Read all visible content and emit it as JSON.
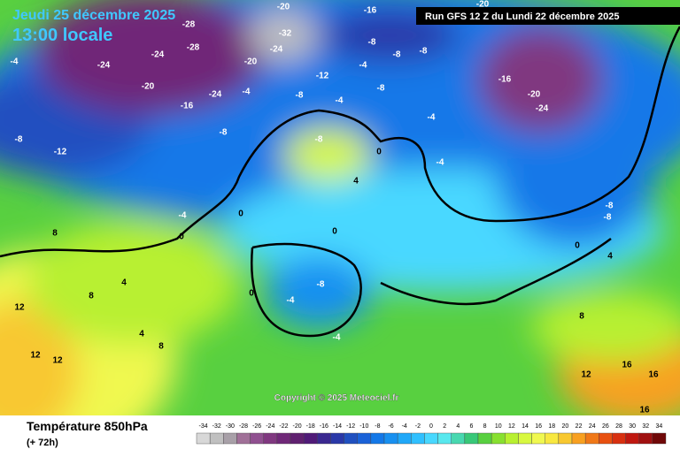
{
  "header": {
    "date": "Jeudi 25 décembre 2025",
    "time": "13:00 locale",
    "run": "Run GFS 12 Z du Lundi 22 décembre 2025"
  },
  "copyright": "Copyright © 2025 Meteociel.fr",
  "legend": {
    "title": "Température 850hPa",
    "lead": "(+ 72h)",
    "scale": [
      -34,
      -32,
      -30,
      -28,
      -26,
      -24,
      -22,
      -20,
      -18,
      -16,
      -14,
      -12,
      -10,
      -8,
      -6,
      -4,
      -2,
      0,
      2,
      4,
      6,
      8,
      10,
      12,
      14,
      16,
      18,
      20,
      22,
      24,
      26,
      28,
      30,
      32,
      34
    ],
    "colors": [
      "#d8d8d8",
      "#c0c0c0",
      "#a8a0a8",
      "#a07098",
      "#905090",
      "#803880",
      "#702878",
      "#602070",
      "#501a78",
      "#3a2890",
      "#2a38a8",
      "#2050c0",
      "#1a62d8",
      "#1478e8",
      "#1890f0",
      "#20a8f8",
      "#30c0ff",
      "#48d8ff",
      "#58e8ee",
      "#48d8b0",
      "#38c878",
      "#58d040",
      "#88e030",
      "#b8f030",
      "#d8f840",
      "#f0f850",
      "#f8e840",
      "#f8c830",
      "#f8a020",
      "#f07818",
      "#e85010",
      "#d83010",
      "#c01810",
      "#a01010",
      "#700808"
    ]
  },
  "contour_labels": [
    -20,
    -16,
    -20,
    -28,
    -32,
    -24,
    -28,
    -24,
    -4,
    -24,
    -20,
    -12,
    -20,
    -24,
    -16,
    -4,
    -8,
    -8,
    -8,
    -4,
    -8,
    -8,
    -4,
    -16,
    -20,
    -24,
    -4,
    -8,
    -12,
    -8,
    -8,
    -4,
    0,
    4,
    -4,
    0,
    8,
    0,
    0,
    -8,
    -8,
    0,
    4,
    4,
    8,
    -8,
    -4,
    0,
    -4,
    4,
    8,
    12,
    12,
    12,
    8,
    16,
    12,
    16,
    16
  ]
}
